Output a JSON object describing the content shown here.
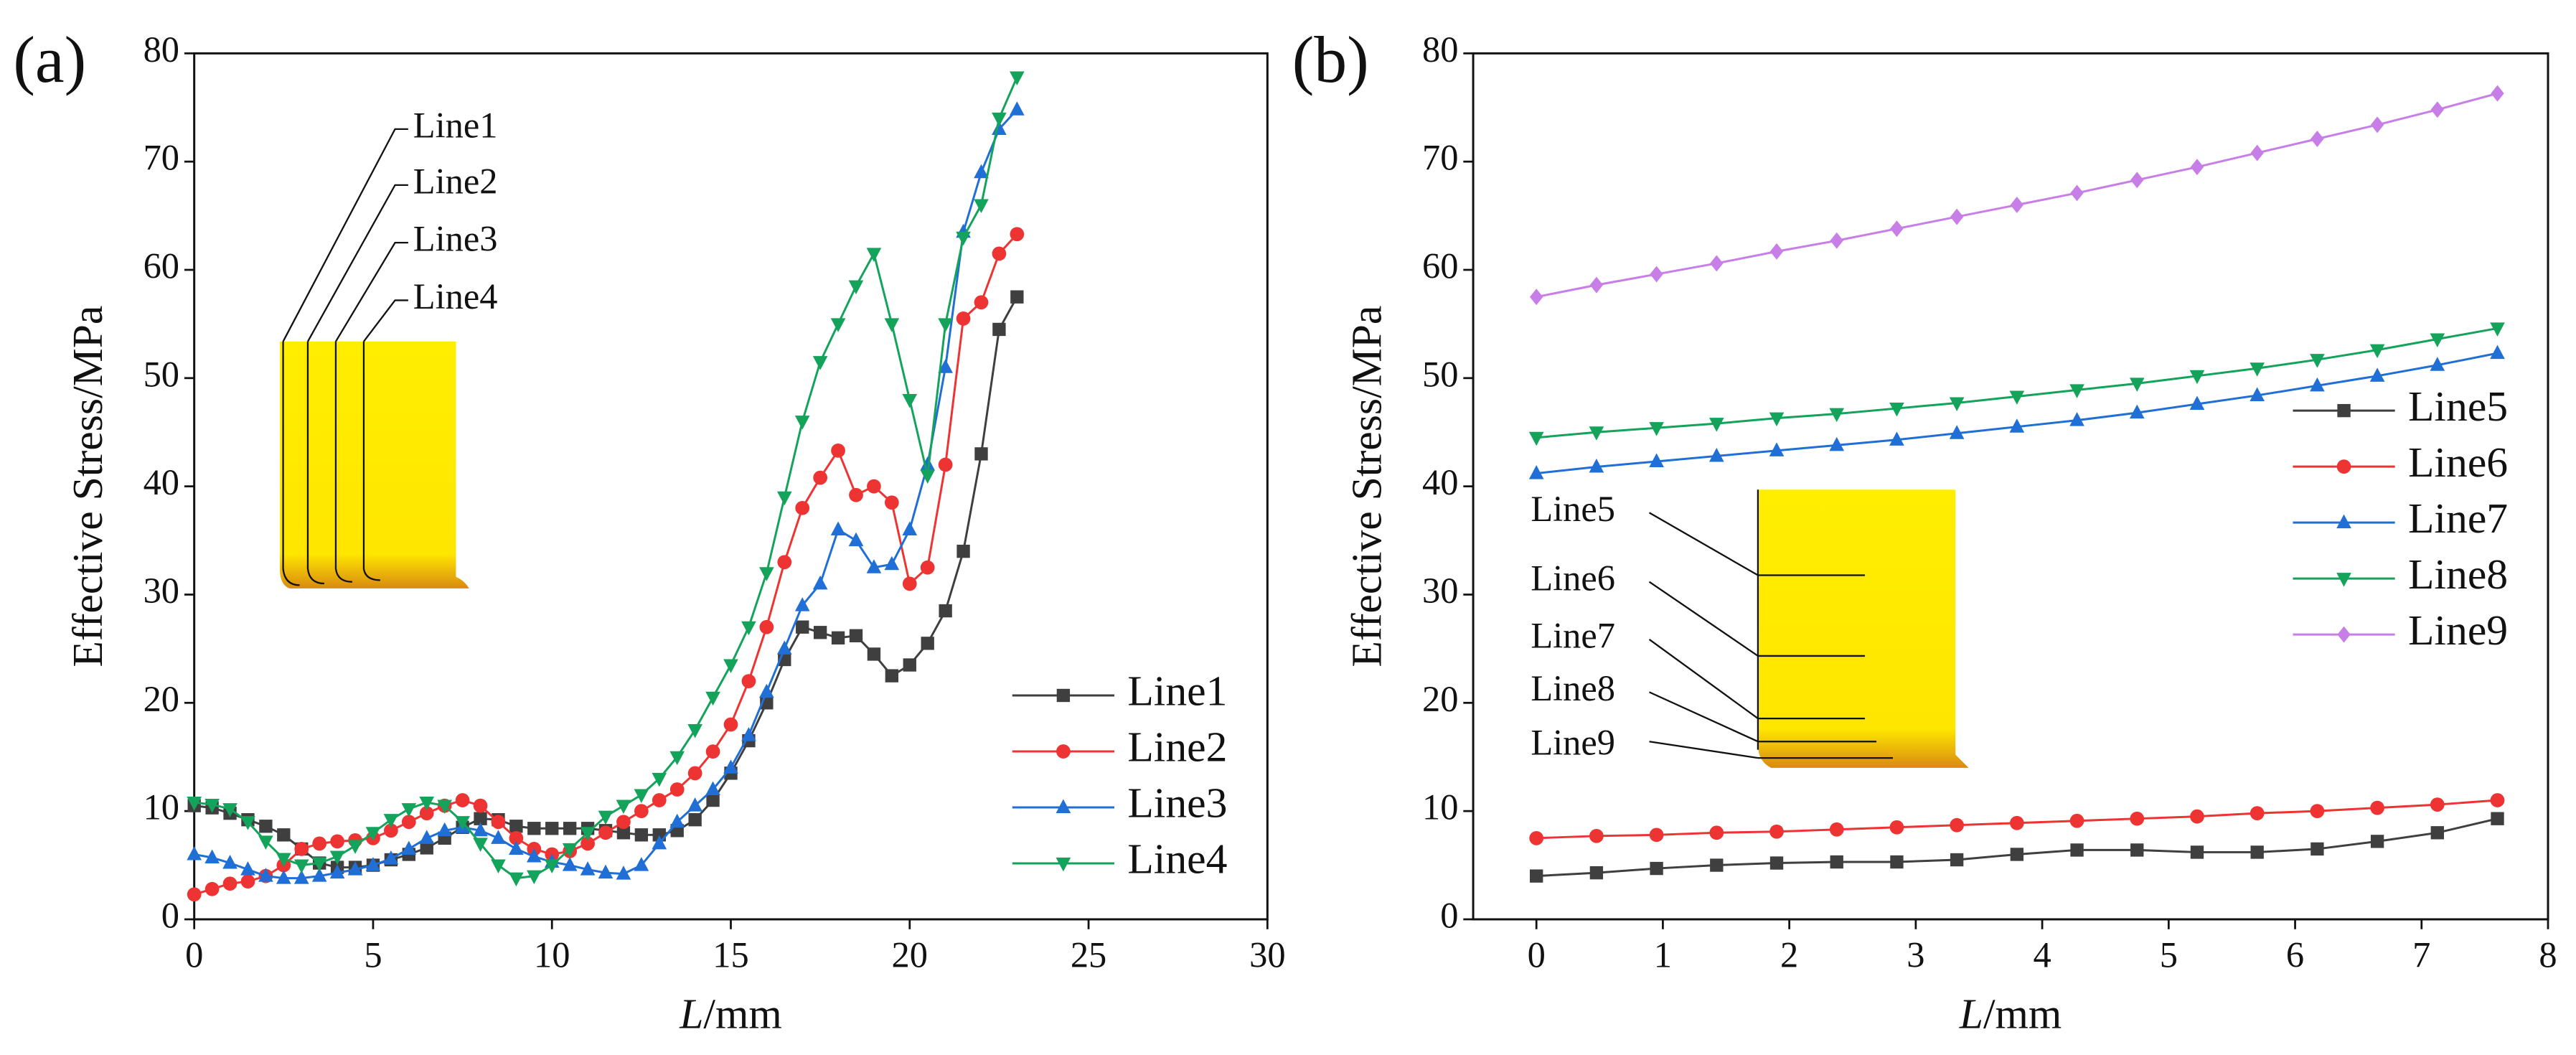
{
  "chart_data": [
    {
      "type": "line",
      "panel_label": "(a)",
      "ylabel": "Effective Stress/MPa",
      "xlabel": [
        "L",
        "/mm"
      ],
      "xlim": [
        0,
        30
      ],
      "xticks": [
        0,
        5,
        10,
        15,
        20,
        25,
        30
      ],
      "ylim": [
        0,
        80
      ],
      "yticks": [
        0,
        10,
        20,
        30,
        40,
        50,
        60,
        70,
        80
      ],
      "legend": "lower right",
      "annotations": [
        "Line1",
        "Line2",
        "Line3",
        "Line4"
      ],
      "x": [
        0,
        0.5,
        1,
        1.5,
        2,
        2.5,
        3,
        3.5,
        4,
        4.5,
        5,
        5.5,
        6,
        6.5,
        7,
        7.5,
        8,
        8.5,
        9,
        9.5,
        10,
        10.5,
        11,
        11.5,
        12,
        12.5,
        13,
        13.5,
        14,
        14.5,
        15,
        15.5,
        16,
        16.5,
        17,
        17.5,
        18,
        18.5,
        19,
        19.5,
        20,
        20.5,
        21,
        21.5,
        22,
        22.5,
        23
      ],
      "series": [
        {
          "name": "Line1",
          "color": "#3f3f3f",
          "marker": "square",
          "values": [
            10.5,
            10.3,
            9.8,
            9.2,
            8.6,
            7.8,
            6.5,
            5.2,
            4.8,
            4.8,
            5.0,
            5.5,
            6.0,
            6.6,
            7.5,
            8.5,
            9.3,
            9.2,
            8.6,
            8.4,
            8.4,
            8.4,
            8.4,
            8.2,
            8.0,
            7.8,
            7.8,
            8.2,
            9.2,
            11,
            13.5,
            16.5,
            20,
            24,
            27,
            26.5,
            26,
            26.2,
            24.5,
            22.5,
            23.5,
            25.5,
            28.5,
            34,
            43,
            54.5,
            57.5
          ]
        },
        {
          "name": "Line2",
          "color": "#ee3333",
          "marker": "circle",
          "values": [
            2.3,
            2.8,
            3.3,
            3.5,
            4,
            5,
            6.5,
            7,
            7.2,
            7.3,
            7.5,
            8.2,
            9,
            9.8,
            10.5,
            11,
            10.5,
            9,
            7.5,
            6.5,
            6,
            6.3,
            7,
            8,
            9,
            10,
            11,
            12,
            13.5,
            15.5,
            18,
            22,
            27,
            33,
            38,
            40.8,
            43.3,
            39.2,
            40,
            38.5,
            31,
            32.5,
            42,
            55.5,
            57,
            61.5,
            63.3
          ]
        },
        {
          "name": "Line3",
          "color": "#1f6fd6",
          "marker": "triangle",
          "values": [
            6,
            5.7,
            5.2,
            4.6,
            4,
            3.8,
            3.8,
            4,
            4.3,
            4.6,
            5,
            5.6,
            6.5,
            7.5,
            8.2,
            8.5,
            8.2,
            7.5,
            6.5,
            5.8,
            5.3,
            5,
            4.6,
            4.3,
            4.2,
            5,
            7,
            9,
            10.5,
            12,
            14,
            17,
            21,
            25,
            29,
            31,
            36,
            35,
            32.5,
            32.8,
            36,
            42,
            51,
            63.5,
            69,
            73,
            74.8
          ]
        },
        {
          "name": "Line4",
          "color": "#13a35a",
          "marker": "triangle-down",
          "values": [
            10.8,
            10.6,
            10.2,
            9,
            7.2,
            5.6,
            5,
            5.2,
            5.8,
            6.8,
            8,
            9.2,
            10.2,
            10.8,
            10.5,
            9,
            7,
            5,
            3.8,
            4,
            5,
            6.5,
            8,
            9.5,
            10.5,
            11.5,
            13,
            15,
            17.5,
            20.5,
            23.5,
            27,
            32,
            39,
            46,
            51.5,
            55,
            58.5,
            61.5,
            55,
            48,
            41,
            55,
            63,
            66,
            74,
            77.8
          ]
        }
      ]
    },
    {
      "type": "line",
      "panel_label": "(b)",
      "ylabel": "Effective Stress/MPa",
      "xlabel": [
        "L",
        "/mm"
      ],
      "xlim": [
        -0.5,
        8
      ],
      "xticks": [
        0,
        1,
        2,
        3,
        4,
        5,
        6,
        7,
        8
      ],
      "ylim": [
        0,
        80
      ],
      "yticks": [
        0,
        10,
        20,
        30,
        40,
        50,
        60,
        70,
        80
      ],
      "legend": "center right",
      "annotations": [
        "Line5",
        "Line6",
        "Line7",
        "Line8",
        "Line9"
      ],
      "x": [
        0,
        0.475,
        0.95,
        1.425,
        1.9,
        2.375,
        2.85,
        3.325,
        3.8,
        4.275,
        4.75,
        5.225,
        5.7,
        6.175,
        6.65,
        7.125,
        7.6
      ],
      "series": [
        {
          "name": "Line5",
          "color": "#3f3f3f",
          "marker": "square",
          "values": [
            4.0,
            4.3,
            4.7,
            5.0,
            5.2,
            5.3,
            5.3,
            5.5,
            6.0,
            6.4,
            6.4,
            6.2,
            6.2,
            6.5,
            7.2,
            8.0,
            9.3
          ]
        },
        {
          "name": "Line6",
          "color": "#ee3333",
          "marker": "circle",
          "values": [
            7.5,
            7.7,
            7.8,
            8.0,
            8.1,
            8.3,
            8.5,
            8.7,
            8.9,
            9.1,
            9.3,
            9.5,
            9.8,
            10.0,
            10.3,
            10.6,
            11.0
          ]
        },
        {
          "name": "Line7",
          "color": "#1f6fd6",
          "marker": "triangle",
          "values": [
            41.2,
            41.8,
            42.3,
            42.8,
            43.3,
            43.8,
            44.3,
            44.9,
            45.5,
            46.1,
            46.8,
            47.6,
            48.4,
            49.3,
            50.2,
            51.2,
            52.3
          ]
        },
        {
          "name": "Line8",
          "color": "#13a35a",
          "marker": "triangle-down",
          "values": [
            44.5,
            45.0,
            45.4,
            45.8,
            46.3,
            46.7,
            47.2,
            47.7,
            48.3,
            48.9,
            49.5,
            50.2,
            50.9,
            51.7,
            52.6,
            53.6,
            54.6
          ]
        },
        {
          "name": "Line9",
          "color": "#c77ee6",
          "marker": "diamond",
          "values": [
            57.5,
            58.6,
            59.6,
            60.6,
            61.7,
            62.7,
            63.8,
            64.9,
            66.0,
            67.1,
            68.3,
            69.5,
            70.8,
            72.1,
            73.4,
            74.8,
            76.3
          ]
        }
      ]
    }
  ]
}
